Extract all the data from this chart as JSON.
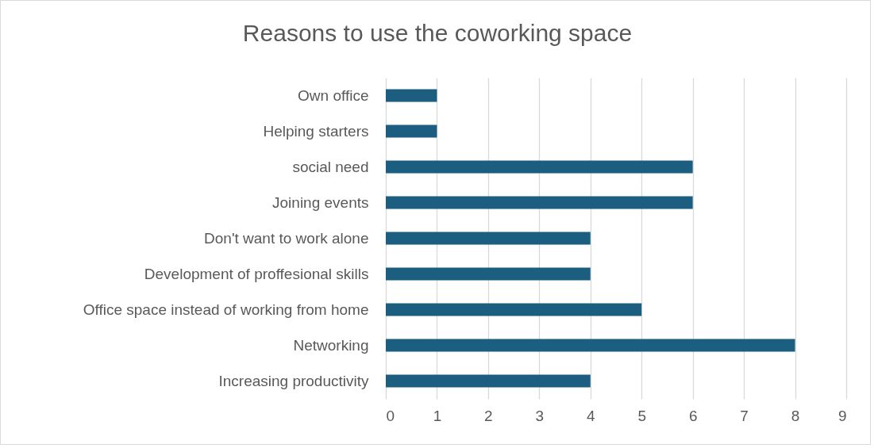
{
  "chart_data": {
    "type": "bar",
    "orientation": "horizontal",
    "title": "Reasons to use the coworking space",
    "categories": [
      "Own office",
      "Helping starters",
      "social need",
      "Joining events",
      "Don't want to work alone",
      "Development of proffesional skills",
      "Office space instead of working from home",
      "Networking",
      "Increasing productivity"
    ],
    "values": [
      1,
      1,
      6,
      6,
      4,
      4,
      5,
      8,
      4
    ],
    "color": "#1b5e80",
    "xlim": [
      0,
      9
    ],
    "xticks": [
      0,
      1,
      2,
      3,
      4,
      5,
      6,
      7,
      8,
      9
    ],
    "grid": "x"
  }
}
